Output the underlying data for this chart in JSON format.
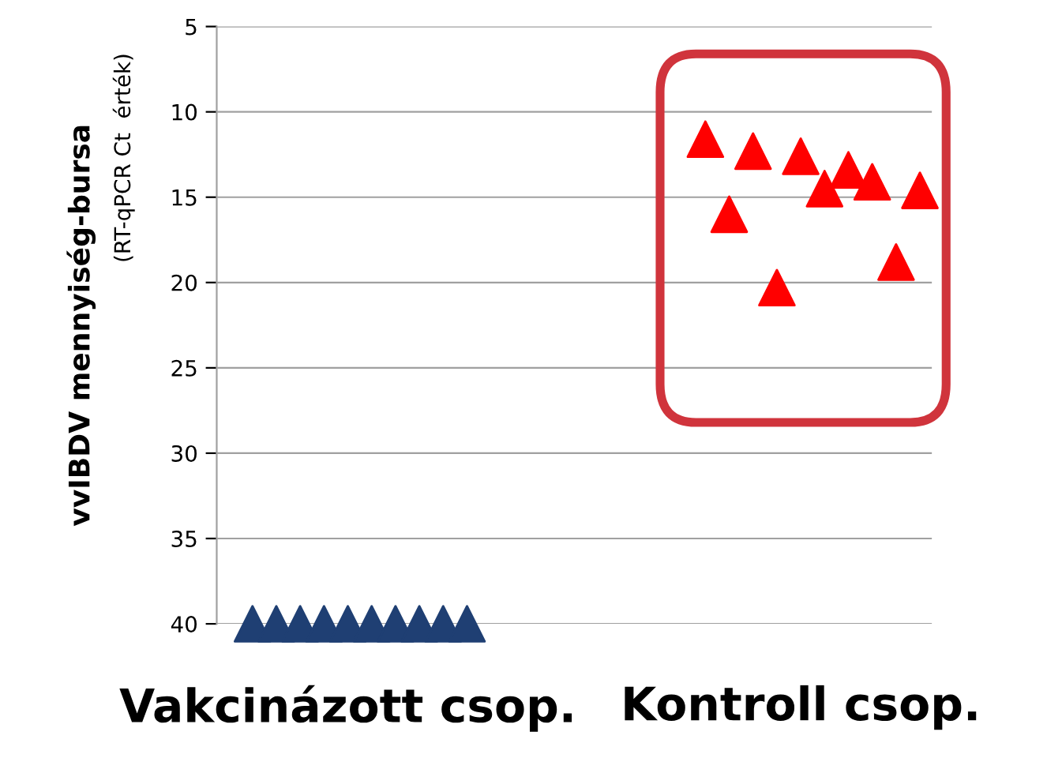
{
  "chart_data": {
    "type": "scatter",
    "ylabel": "vvIBDV mennyiség-bursa",
    "annotations": [
      "(RT-qPCR Ct  érték)"
    ],
    "categories": [
      null,
      null,
      null,
      null,
      null,
      "Vakcinázott csop.",
      null,
      null,
      null,
      null,
      null,
      null,
      null,
      null,
      null,
      null,
      null,
      null,
      null,
      null,
      null,
      null,
      null,
      null,
      "Kontroll csop.",
      null,
      null,
      null,
      null,
      null
    ],
    "ylim": [
      40,
      5
    ],
    "yticks": [
      5,
      10,
      15,
      20,
      25,
      30,
      35,
      40
    ],
    "grid": "y",
    "marker": "triangle",
    "series": [
      {
        "color": "#1f3f73",
        "values": [
          null,
          40,
          40,
          40,
          40,
          40,
          40,
          40,
          40,
          40,
          40,
          null,
          null,
          null,
          null,
          null,
          null,
          null,
          null,
          null,
          null,
          null,
          null,
          null,
          null,
          null,
          null,
          null,
          null,
          null
        ]
      },
      {
        "color": "#ff0000",
        "values": [
          null,
          null,
          null,
          null,
          null,
          null,
          null,
          null,
          null,
          null,
          null,
          null,
          null,
          null,
          null,
          null,
          null,
          null,
          null,
          null,
          11.6,
          16.0,
          12.3,
          20.3,
          12.6,
          14.5,
          13.4,
          14.1,
          18.8,
          14.6
        ]
      }
    ]
  }
}
